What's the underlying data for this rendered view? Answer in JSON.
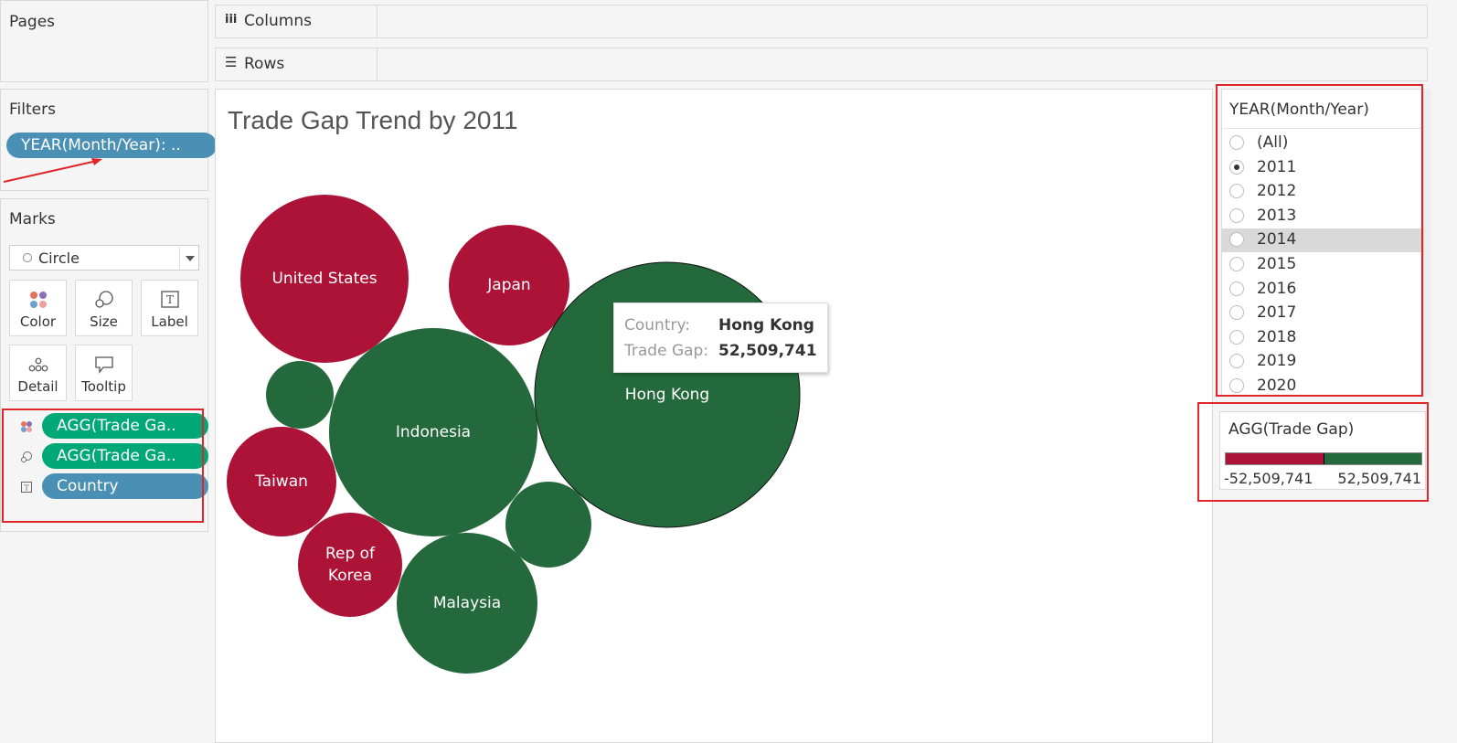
{
  "pages": {
    "title": "Pages"
  },
  "shelves": {
    "columns_label": "Columns",
    "rows_label": "Rows"
  },
  "filters": {
    "title": "Filters",
    "pill": "YEAR(Month/Year): .."
  },
  "marks": {
    "title": "Marks",
    "type_value": "Circle",
    "buttons": {
      "color": "Color",
      "size": "Size",
      "label": "Label",
      "detail": "Detail",
      "tooltip": "Tooltip"
    },
    "pills": [
      {
        "label": "AGG(Trade Ga..",
        "kind": "color"
      },
      {
        "label": "AGG(Trade Ga..",
        "kind": "size"
      },
      {
        "label": "Country",
        "kind": "label"
      }
    ]
  },
  "view": {
    "title": "Trade Gap Trend by 2011"
  },
  "tooltip": {
    "country_key": "Country:",
    "country_value": "Hong Kong",
    "gap_key": "Trade Gap:",
    "gap_value": "52,509,741"
  },
  "year_filter": {
    "title": "YEAR(Month/Year)",
    "options": [
      "(All)",
      "2011",
      "2012",
      "2013",
      "2014",
      "2015",
      "2016",
      "2017",
      "2018",
      "2019",
      "2020"
    ],
    "selected": "2011",
    "hovered": "2014"
  },
  "legend": {
    "title": "AGG(Trade Gap)",
    "min_label": "-52,509,741",
    "max_label": "52,509,741",
    "neg_color": "#ad1237",
    "pos_color": "#23693b"
  },
  "chart_data": {
    "type": "bubble",
    "title": "Trade Gap Trend by 2011",
    "labels": [
      "United States",
      "Japan",
      "Hong Kong",
      "Indonesia",
      "Taiwan",
      "Rep of\nKorea",
      "Malaysia",
      "",
      ""
    ],
    "sign": [
      "negative",
      "negative",
      "positive",
      "positive",
      "negative",
      "negative",
      "positive",
      "positive",
      "positive"
    ],
    "known_values": {
      "Hong Kong": 52509741
    },
    "colors": {
      "negative": "#ad1237",
      "positive": "#23693b"
    }
  }
}
